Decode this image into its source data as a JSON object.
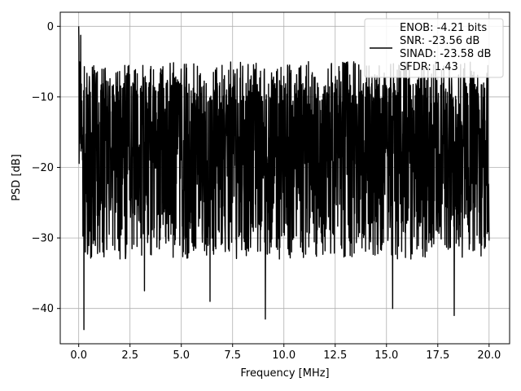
{
  "chart_data": {
    "type": "line",
    "xlabel": "Frequency [MHz]",
    "ylabel": "PSD [dB]",
    "xlim": [
      -0.9,
      21
    ],
    "ylim": [
      -45,
      2
    ],
    "x_ticks": [
      0.0,
      2.5,
      5.0,
      7.5,
      10.0,
      12.5,
      15.0,
      17.5,
      20.0
    ],
    "x_tick_labels": [
      "0.0",
      "2.5",
      "5.0",
      "7.5",
      "10.0",
      "12.5",
      "15.0",
      "17.5",
      "20.0"
    ],
    "y_ticks": [
      0,
      -10,
      -20,
      -30,
      -40
    ],
    "y_tick_labels": [
      "0",
      "−10",
      "−20",
      "−30",
      "−40"
    ],
    "grid": true,
    "legend_position": "top-right",
    "series": [
      {
        "color": "#000000",
        "description": "Dense noise-like PSD trace from 0 to 20 MHz: peak at 0 dB at 0 MHz, bulk between about -7 and -28 dB, deepest dips near -43 dB.",
        "x_start": 0.0,
        "x_end": 20.0,
        "num_points": 2048,
        "peak": {
          "x": 0.0,
          "y": 0.0
        },
        "typical_upper": -8,
        "typical_lower": -27,
        "notable_minima": [
          {
            "x": 0.25,
            "y": -43.0
          },
          {
            "x": 9.1,
            "y": -41.5
          },
          {
            "x": 15.3,
            "y": -40.0
          },
          {
            "x": 18.3,
            "y": -41.0
          },
          {
            "x": 6.4,
            "y": -39.0
          },
          {
            "x": 3.2,
            "y": -37.5
          }
        ]
      }
    ],
    "legend_lines": [
      "ENOB: -4.21 bits",
      "SNR: -23.56 dB",
      "SINAD: -23.58 dB",
      "SFDR: 1.43"
    ]
  }
}
